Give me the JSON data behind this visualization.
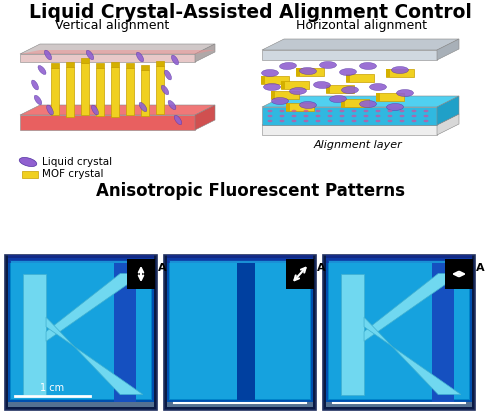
{
  "title": "Liquid Crystal-Assisted Alignment Control",
  "subtitle_left": "Vertical alignment",
  "subtitle_right": "Horizontal alignment",
  "bottom_title": "Anisotropic Fluorescent Patterns",
  "legend_liquid": "Liquid crystal",
  "legend_mof": "MOF crystal",
  "label_alignment": "Alignment layer",
  "scale_bar": "1 cm",
  "bg_color": "#ffffff",
  "lc_color": "#9060d0",
  "mof_yellow": "#f0d020",
  "mof_yellow_edge": "#c8a000",
  "glass_top": "#d8c8c8",
  "glass_side": "#b0a0a0",
  "red_top": "#f07070",
  "red_front": "#e05050",
  "red_side": "#c84040",
  "cyan_top": "#50d0f0",
  "cyan_front": "#30b8e0",
  "cyan_side": "#20a0c8",
  "white_layer": "#f0f0f0",
  "photo_outer": "#0a1a40",
  "photo_mid": "#0030a0",
  "photo_inner": "#0090c8",
  "photo_inner2": "#00a8e0",
  "k_bright": "#70e0f0",
  "k_dark": "#0050a0",
  "k_mid": "#0060b0",
  "photo_bar_dark": "#1040a0"
}
